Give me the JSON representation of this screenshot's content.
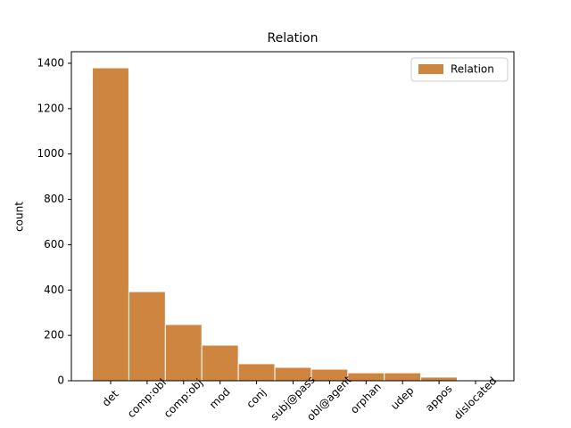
{
  "chart_data": {
    "type": "bar",
    "title": "Relation",
    "y_label": "count",
    "categories": [
      "det",
      "comp:obl",
      "comp:obj",
      "mod",
      "conj",
      "subj@pass",
      "obl@agent",
      "orphan",
      "udep",
      "appos",
      "dislocated"
    ],
    "series": [
      {
        "name": "Relation",
        "color": "#cd853f",
        "values": [
          1380,
          393,
          248,
          157,
          75,
          59,
          51,
          35,
          35,
          16,
          1
        ]
      }
    ],
    "ylim": [
      0,
      1451
    ],
    "yticks": [
      0,
      200,
      400,
      600,
      800,
      1000,
      1200,
      1400
    ],
    "legend": "upper right"
  }
}
